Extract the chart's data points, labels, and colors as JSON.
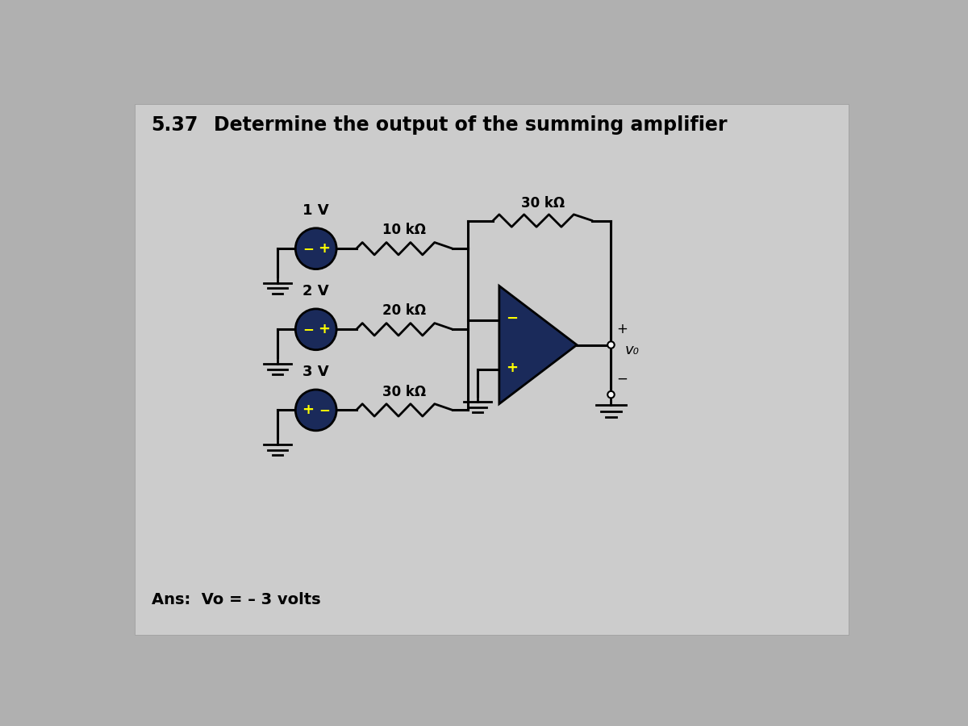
{
  "title_num": "5.37",
  "title_text": "Determine the output of the summing amplifier",
  "ans_text": "Ans:  Vo = – 3 volts",
  "bg_outer": "#b0b0b0",
  "bg_card": "#cccccc",
  "vs_color": "#1a2a5a",
  "opamp_color": "#1a2a5a",
  "voltages": [
    "1 V",
    "2 V",
    "3 V"
  ],
  "resistors_in": [
    "10 kΩ",
    "20 kΩ",
    "30 kΩ"
  ],
  "resistor_fb": "30 kΩ",
  "vo_label": "v₀"
}
